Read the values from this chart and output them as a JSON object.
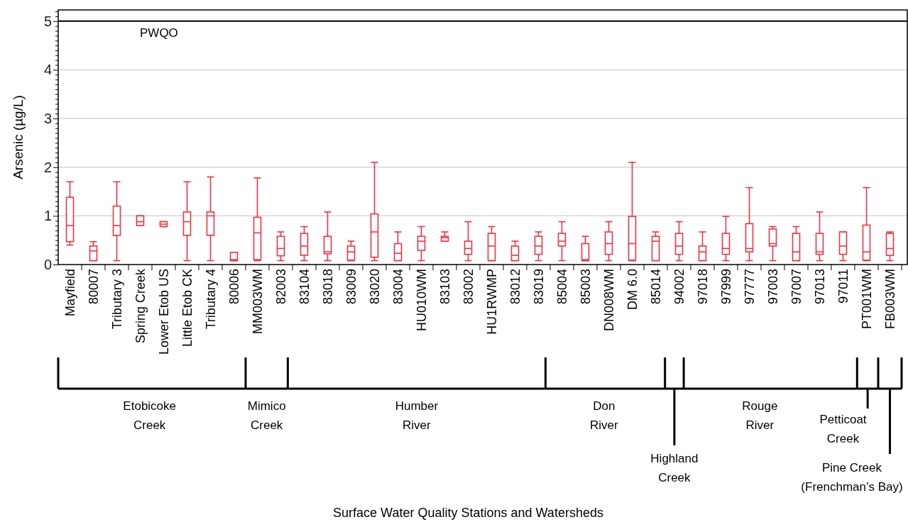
{
  "chart_data": {
    "type": "box",
    "ylabel": "Arsenic (µg/L)",
    "categories": [
      "Mayfield",
      "80007",
      "Tributary 3",
      "Spring Creek",
      "Lower Etob US",
      "Little Etob CK",
      "Tributary 4",
      "80006",
      "MM003WM",
      "82003",
      "83104",
      "83018",
      "83009",
      "83020",
      "83004",
      "HU010WM",
      "83103",
      "83002",
      "HU1RWMP",
      "83012",
      "83019",
      "85004",
      "85003",
      "DN008WM",
      "DM 6.0",
      "85014",
      "94002",
      "97018",
      "97999",
      "97777",
      "97003",
      "97007",
      "97013",
      "97011",
      "PT001WM",
      "FB003WM"
    ],
    "color": "#ee3344",
    "boxes": [
      {
        "low": 0.4,
        "q1": 0.47,
        "median": 0.8,
        "q3": 1.38,
        "high": 1.7
      },
      {
        "low": 0.08,
        "q1": 0.08,
        "median": 0.28,
        "q3": 0.38,
        "high": 0.47
      },
      {
        "low": 0.08,
        "q1": 0.6,
        "median": 0.8,
        "q3": 1.2,
        "high": 1.7
      },
      {
        "low": 0.8,
        "q1": 0.8,
        "median": 0.88,
        "q3": 1.0,
        "high": 1.0
      },
      {
        "low": 0.78,
        "q1": 0.78,
        "median": 0.83,
        "q3": 0.88,
        "high": 0.88
      },
      {
        "low": 0.08,
        "q1": 0.6,
        "median": 0.88,
        "q3": 1.08,
        "high": 1.7
      },
      {
        "low": 0.08,
        "q1": 0.6,
        "median": 1.0,
        "q3": 1.08,
        "high": 1.8
      },
      {
        "low": 0.08,
        "q1": 0.08,
        "median": 0.1,
        "q3": 0.25,
        "high": 0.25
      },
      {
        "low": 0.08,
        "q1": 0.1,
        "median": 0.65,
        "q3": 0.97,
        "high": 1.78
      },
      {
        "low": 0.08,
        "q1": 0.18,
        "median": 0.33,
        "q3": 0.58,
        "high": 0.67
      },
      {
        "low": 0.08,
        "q1": 0.19,
        "median": 0.38,
        "q3": 0.64,
        "high": 0.78
      },
      {
        "low": 0.08,
        "q1": 0.22,
        "median": 0.26,
        "q3": 0.58,
        "high": 1.08
      },
      {
        "low": 0.08,
        "q1": 0.09,
        "median": 0.26,
        "q3": 0.38,
        "high": 0.48
      },
      {
        "low": 0.08,
        "q1": 0.15,
        "median": 0.67,
        "q3": 1.04,
        "high": 2.1
      },
      {
        "low": 0.08,
        "q1": 0.08,
        "median": 0.23,
        "q3": 0.43,
        "high": 0.67
      },
      {
        "low": 0.08,
        "q1": 0.29,
        "median": 0.48,
        "q3": 0.58,
        "high": 0.78
      },
      {
        "low": 0.48,
        "q1": 0.48,
        "median": 0.55,
        "q3": 0.58,
        "high": 0.67
      },
      {
        "low": 0.08,
        "q1": 0.21,
        "median": 0.33,
        "q3": 0.48,
        "high": 0.88
      },
      {
        "low": 0.08,
        "q1": 0.08,
        "median": 0.38,
        "q3": 0.64,
        "high": 0.78
      },
      {
        "low": 0.08,
        "q1": 0.08,
        "median": 0.19,
        "q3": 0.38,
        "high": 0.48
      },
      {
        "low": 0.08,
        "q1": 0.21,
        "median": 0.38,
        "q3": 0.58,
        "high": 0.67
      },
      {
        "low": 0.08,
        "q1": 0.38,
        "median": 0.48,
        "q3": 0.64,
        "high": 0.88
      },
      {
        "low": 0.08,
        "q1": 0.08,
        "median": 0.1,
        "q3": 0.43,
        "high": 0.58
      },
      {
        "low": 0.08,
        "q1": 0.21,
        "median": 0.43,
        "q3": 0.67,
        "high": 0.88
      },
      {
        "low": 0.08,
        "q1": 0.09,
        "median": 0.43,
        "q3": 0.99,
        "high": 2.1
      },
      {
        "low": 0.08,
        "q1": 0.08,
        "median": 0.48,
        "q3": 0.58,
        "high": 0.67
      },
      {
        "low": 0.08,
        "q1": 0.21,
        "median": 0.38,
        "q3": 0.64,
        "high": 0.88
      },
      {
        "low": 0.08,
        "q1": 0.08,
        "median": 0.26,
        "q3": 0.38,
        "high": 0.67
      },
      {
        "low": 0.08,
        "q1": 0.21,
        "median": 0.33,
        "q3": 0.64,
        "high": 0.99
      },
      {
        "low": 0.08,
        "q1": 0.26,
        "median": 0.33,
        "q3": 0.84,
        "high": 1.58
      },
      {
        "low": 0.08,
        "q1": 0.38,
        "median": 0.43,
        "q3": 0.73,
        "high": 0.78
      },
      {
        "low": 0.08,
        "q1": 0.08,
        "median": 0.26,
        "q3": 0.64,
        "high": 0.78
      },
      {
        "low": 0.08,
        "q1": 0.21,
        "median": 0.26,
        "q3": 0.64,
        "high": 1.08
      },
      {
        "low": 0.08,
        "q1": 0.21,
        "median": 0.38,
        "q3": 0.67,
        "high": 0.67
      },
      {
        "low": 0.08,
        "q1": 0.09,
        "median": 0.26,
        "q3": 0.81,
        "high": 1.58
      },
      {
        "low": 0.08,
        "q1": 0.19,
        "median": 0.33,
        "q3": 0.64,
        "high": 0.67
      }
    ],
    "ylim": [
      0,
      5.23
    ],
    "yticks": [
      0,
      {
        "value": 0.1,
        "label": null
      },
      {
        "value": 0.2,
        "label": null
      },
      {
        "value": 0.3,
        "label": null
      },
      {
        "value": 0.4,
        "label": null
      },
      {
        "value": 0.5,
        "label": null
      },
      {
        "value": 0.6,
        "label": null
      },
      {
        "value": 0.7,
        "label": null
      },
      {
        "value": 0.8,
        "label": null
      },
      {
        "value": 0.9,
        "label": null
      },
      1,
      {
        "value": 1.1,
        "label": null
      },
      {
        "value": 1.2,
        "label": null
      },
      {
        "value": 1.3,
        "label": null
      },
      {
        "value": 1.4,
        "label": null
      },
      {
        "value": 1.5,
        "label": null
      },
      {
        "value": 1.6,
        "label": null
      },
      {
        "value": 1.7,
        "label": null
      },
      {
        "value": 1.8,
        "label": null
      },
      {
        "value": 1.9,
        "label": null
      },
      2,
      {
        "value": 2.1,
        "label": null
      },
      {
        "value": 2.2,
        "label": null
      },
      {
        "value": 2.3,
        "label": null
      },
      {
        "value": 2.4,
        "label": null
      },
      {
        "value": 2.5,
        "label": null
      },
      {
        "value": 2.6,
        "label": null
      },
      {
        "value": 2.7,
        "label": null
      },
      {
        "value": 2.8,
        "label": null
      },
      {
        "value": 2.9,
        "label": null
      },
      3,
      {
        "value": 3.1,
        "label": null
      },
      {
        "value": 3.2,
        "label": null
      },
      {
        "value": 3.3,
        "label": null
      },
      {
        "value": 3.4,
        "label": null
      },
      {
        "value": 3.5,
        "label": null
      },
      {
        "value": 3.6,
        "label": null
      },
      {
        "value": 3.7,
        "label": null
      },
      {
        "value": 3.8,
        "label": null
      },
      {
        "value": 3.9,
        "label": null
      },
      4,
      {
        "value": 4.1,
        "label": null
      },
      {
        "value": 4.2,
        "label": null
      },
      {
        "value": 4.3,
        "label": null
      },
      {
        "value": 4.4,
        "label": null
      },
      {
        "value": 4.5,
        "label": null
      },
      {
        "value": 4.6,
        "label": null
      },
      {
        "value": 4.7,
        "label": null
      },
      {
        "value": 4.8,
        "label": null
      },
      {
        "value": 4.9,
        "label": null
      },
      5,
      {
        "value": 5.1,
        "label": null
      },
      {
        "value": 5.2,
        "label": null
      }
    ],
    "grid": "y",
    "ref_lines": [
      {
        "axis": "y",
        "value": 5,
        "label": "PWQO",
        "color": "#000000"
      }
    ],
    "annotations": [
      "Etobicoke\nCreek",
      "Mimico\nCreek",
      "Humber\nRiver",
      "Don\nRiver",
      "Highland\nCreek",
      "Rouge\nRiver",
      "Petticoat\nCreek",
      "Pine Creek\n(Frenchman’s Bay)",
      "Surface Water Quality Stations and Watersheds"
    ]
  }
}
